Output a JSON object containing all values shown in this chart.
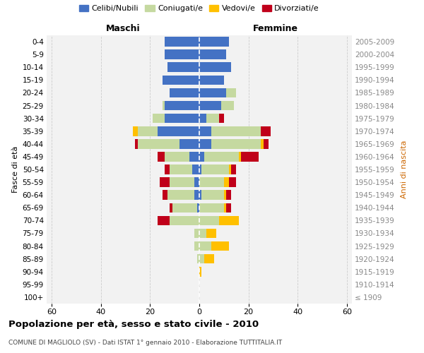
{
  "age_groups": [
    "100+",
    "95-99",
    "90-94",
    "85-89",
    "80-84",
    "75-79",
    "70-74",
    "65-69",
    "60-64",
    "55-59",
    "50-54",
    "45-49",
    "40-44",
    "35-39",
    "30-34",
    "25-29",
    "20-24",
    "15-19",
    "10-14",
    "5-9",
    "0-4"
  ],
  "birth_years": [
    "≤ 1909",
    "1910-1914",
    "1915-1919",
    "1920-1924",
    "1925-1929",
    "1930-1934",
    "1935-1939",
    "1940-1944",
    "1945-1949",
    "1950-1954",
    "1955-1959",
    "1960-1964",
    "1965-1969",
    "1970-1974",
    "1975-1979",
    "1980-1984",
    "1985-1989",
    "1990-1994",
    "1995-1999",
    "2000-2004",
    "2005-2009"
  ],
  "maschi_celibi": [
    0,
    0,
    0,
    0,
    0,
    0,
    0,
    1,
    2,
    2,
    3,
    4,
    8,
    17,
    14,
    14,
    12,
    15,
    13,
    14,
    14
  ],
  "maschi_coniugati": [
    0,
    0,
    0,
    1,
    2,
    2,
    12,
    10,
    11,
    10,
    9,
    10,
    17,
    8,
    5,
    1,
    0,
    0,
    0,
    0,
    0
  ],
  "maschi_vedovi": [
    0,
    0,
    0,
    0,
    0,
    0,
    0,
    0,
    0,
    0,
    0,
    0,
    0,
    2,
    0,
    0,
    0,
    0,
    0,
    0,
    0
  ],
  "maschi_divorziati": [
    0,
    0,
    0,
    0,
    0,
    0,
    5,
    1,
    2,
    4,
    2,
    3,
    1,
    0,
    0,
    0,
    0,
    0,
    0,
    0,
    0
  ],
  "femmine_nubili": [
    0,
    0,
    0,
    0,
    0,
    0,
    0,
    0,
    1,
    0,
    1,
    2,
    5,
    5,
    3,
    9,
    11,
    10,
    13,
    11,
    12
  ],
  "femmine_coniugate": [
    0,
    0,
    0,
    2,
    5,
    3,
    8,
    10,
    9,
    10,
    11,
    14,
    20,
    20,
    5,
    5,
    4,
    0,
    0,
    0,
    0
  ],
  "femmine_vedove": [
    0,
    0,
    1,
    4,
    7,
    4,
    8,
    1,
    1,
    2,
    1,
    1,
    1,
    0,
    0,
    0,
    0,
    0,
    0,
    0,
    0
  ],
  "femmine_divorziate": [
    0,
    0,
    0,
    0,
    0,
    0,
    0,
    2,
    2,
    3,
    2,
    7,
    2,
    4,
    2,
    0,
    0,
    0,
    0,
    0,
    0
  ],
  "color_celibi": "#4472c4",
  "color_coniugati": "#c5d9a0",
  "color_vedovi": "#ffc000",
  "color_divorziati": "#c0001a",
  "title": "Popolazione per età, sesso e stato civile - 2010",
  "subtitle": "COMUNE DI MAGLIOLO (SV) - Dati ISTAT 1° gennaio 2010 - Elaborazione TUTTITALIA.IT",
  "legend_labels": [
    "Celibi/Nubili",
    "Coniugati/e",
    "Vedovi/e",
    "Divorziati/e"
  ],
  "xlim": 62,
  "bar_height": 0.75,
  "bg_color": "#f2f2f2",
  "grid_color": "#cccccc",
  "maschi_label": "Maschi",
  "femmine_label": "Femmine",
  "ylabel_left": "Fasce di età",
  "ylabel_right": "Anni di nascita"
}
